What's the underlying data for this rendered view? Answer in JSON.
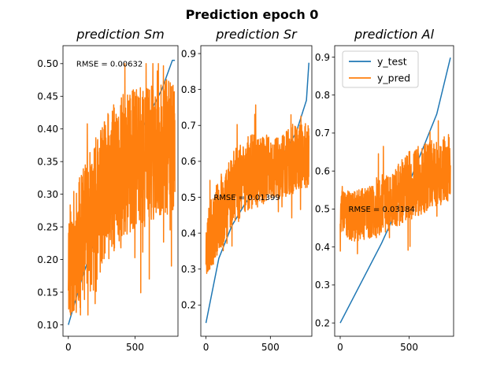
{
  "title": "Prediction epoch 0",
  "chart_data": [
    {
      "type": "line",
      "title": "prediction Sm",
      "xlim": [
        -40,
        822
      ],
      "ylim": [
        0.0825,
        0.5275
      ],
      "xticks": [
        0,
        500
      ],
      "xtick_labels": [
        "0",
        "500"
      ],
      "yticks": [
        0.1,
        0.15,
        0.2,
        0.25,
        0.3,
        0.35,
        0.4,
        0.45,
        0.5
      ],
      "ytick_labels": [
        "0.10",
        "0.15",
        "0.20",
        "0.25",
        "0.30",
        "0.35",
        "0.40",
        "0.45",
        "0.50"
      ],
      "annotation": {
        "text": "RMSE = 0.00632",
        "x": 60,
        "y": 0.5
      },
      "series": [
        {
          "name": "y_test",
          "color": "#1f77b4",
          "n": 800,
          "x": [
            0,
            100,
            200,
            300,
            400,
            500,
            600,
            700,
            780
          ],
          "y": [
            0.1,
            0.17,
            0.23,
            0.3,
            0.34,
            0.38,
            0.42,
            0.46,
            0.505
          ]
        },
        {
          "name": "y_pred",
          "color": "#ff7f0e",
          "n": 800,
          "seed": 11,
          "x": [
            0,
            100,
            200,
            300,
            400,
            500,
            600,
            700,
            800
          ],
          "mean": [
            0.2,
            0.23,
            0.27,
            0.31,
            0.34,
            0.35,
            0.36,
            0.37,
            0.37
          ],
          "spread": [
            0.08,
            0.09,
            0.1,
            0.1,
            0.1,
            0.1,
            0.09,
            0.09,
            0.09
          ],
          "ymin": 0.115,
          "ymax": 0.5
        }
      ]
    },
    {
      "type": "line",
      "title": "prediction Sr",
      "xlim": [
        -40,
        822
      ],
      "ylim": [
        0.113,
        0.922
      ],
      "xticks": [
        0,
        500
      ],
      "xtick_labels": [
        "0",
        "500"
      ],
      "yticks": [
        0.2,
        0.3,
        0.4,
        0.5,
        0.6,
        0.7,
        0.8,
        0.9
      ],
      "ytick_labels": [
        "0.2",
        "0.3",
        "0.4",
        "0.5",
        "0.6",
        "0.7",
        "0.8",
        "0.9"
      ],
      "annotation": {
        "text": "RMSE = 0.01399",
        "x": 60,
        "y": 0.5
      },
      "series": [
        {
          "name": "y_test",
          "color": "#1f77b4",
          "n": 800,
          "x": [
            0,
            100,
            200,
            300,
            400,
            500,
            600,
            700,
            780,
            800
          ],
          "y": [
            0.15,
            0.33,
            0.42,
            0.48,
            0.53,
            0.57,
            0.62,
            0.68,
            0.77,
            0.88
          ]
        },
        {
          "name": "y_pred",
          "color": "#ff7f0e",
          "n": 800,
          "seed": 23,
          "x": [
            0,
            100,
            200,
            300,
            400,
            500,
            600,
            700,
            800
          ],
          "mean": [
            0.36,
            0.45,
            0.52,
            0.56,
            0.58,
            0.58,
            0.59,
            0.61,
            0.62
          ],
          "spread": [
            0.08,
            0.09,
            0.09,
            0.09,
            0.09,
            0.08,
            0.08,
            0.08,
            0.08
          ],
          "ymin": 0.245,
          "ymax": 0.76
        }
      ]
    },
    {
      "type": "line",
      "title": "prediction Al",
      "xlim": [
        -40,
        822
      ],
      "ylim": [
        0.165,
        0.93
      ],
      "xticks": [
        0,
        500
      ],
      "xtick_labels": [
        "0",
        "500"
      ],
      "yticks": [
        0.2,
        0.3,
        0.4,
        0.5,
        0.6,
        0.7,
        0.8,
        0.9
      ],
      "ytick_labels": [
        "0.2",
        "0.3",
        "0.4",
        "0.5",
        "0.6",
        "0.7",
        "0.8",
        "0.9"
      ],
      "annotation": {
        "text": "RMSE = 0.03184",
        "x": 60,
        "y": 0.5
      },
      "legend": {
        "loc": "upper left",
        "entries": [
          "y_test",
          "y_pred"
        ]
      },
      "series": [
        {
          "name": "y_test",
          "color": "#1f77b4",
          "n": 800,
          "x": [
            0,
            100,
            200,
            300,
            400,
            500,
            600,
            700,
            800
          ],
          "y": [
            0.2,
            0.27,
            0.34,
            0.41,
            0.49,
            0.57,
            0.66,
            0.75,
            0.9
          ]
        },
        {
          "name": "y_pred",
          "color": "#ff7f0e",
          "n": 800,
          "seed": 37,
          "x": [
            0,
            100,
            200,
            300,
            400,
            500,
            600,
            700,
            800
          ],
          "mean": [
            0.49,
            0.48,
            0.49,
            0.51,
            0.53,
            0.56,
            0.58,
            0.6,
            0.61
          ],
          "spread": [
            0.05,
            0.06,
            0.06,
            0.07,
            0.07,
            0.08,
            0.08,
            0.08,
            0.08
          ],
          "ymin": 0.24,
          "ymax": 0.86
        }
      ]
    }
  ]
}
